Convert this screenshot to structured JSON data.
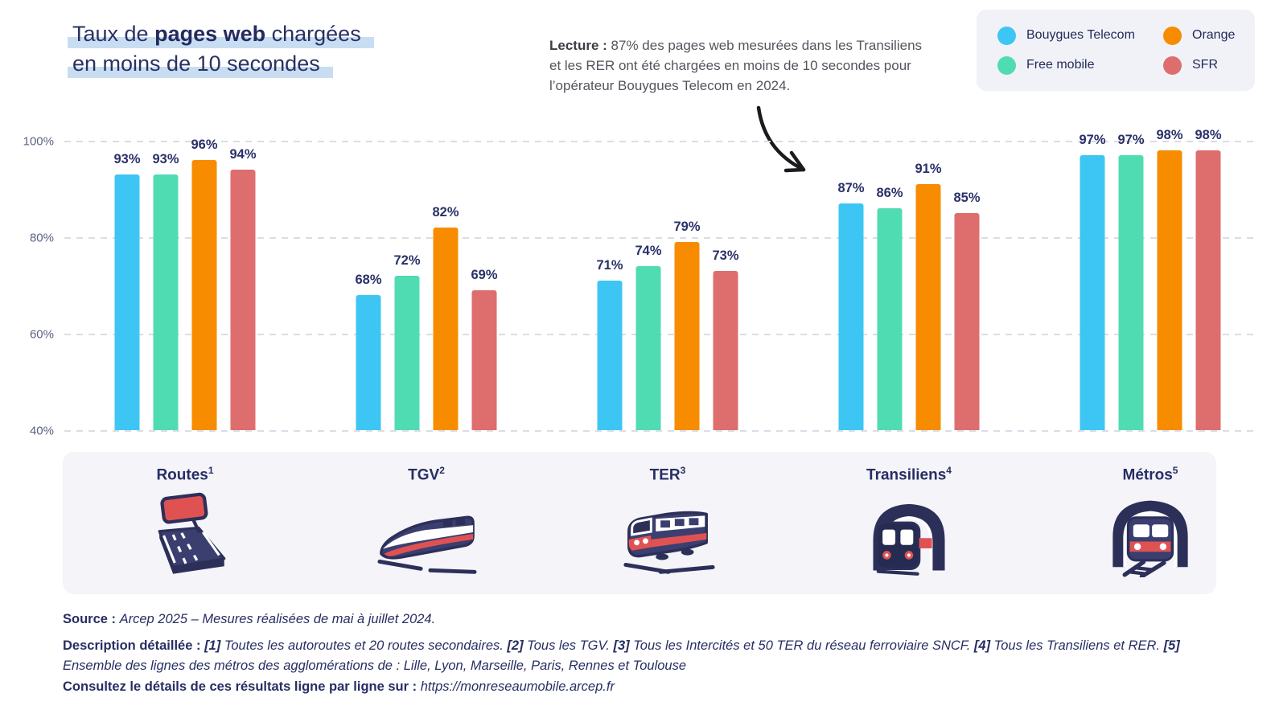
{
  "title": {
    "line1_pre": "Taux de ",
    "line1_bold": "pages web",
    "line1_post": " chargées",
    "line2": "en moins de 10 secondes",
    "highlight_color": "#C8DDF1"
  },
  "lecture": {
    "label": "Lecture :",
    "text": "87% des pages web mesurées dans les Transiliens et les RER ont été chargées en moins de 10 secondes pour l’opérateur Bouygues Telecom en 2024."
  },
  "legend": {
    "display_order": [
      "Bouygues Telecom",
      "Orange",
      "Free mobile",
      "SFR"
    ]
  },
  "chart_data": {
    "type": "bar",
    "title": "Taux de pages web chargées en moins de 10 secondes",
    "categories": [
      "Routes",
      "TGV",
      "TER",
      "Transiliens",
      "Métros"
    ],
    "category_sups": [
      "1",
      "2",
      "3",
      "4",
      "5"
    ],
    "category_icons": [
      "road-icon",
      "tgv-train-icon",
      "ter-train-icon",
      "transilien-train-tunnel-icon",
      "metro-train-tunnel-icon"
    ],
    "series": [
      {
        "name": "Bouygues Telecom",
        "color": "#3DC6F3",
        "values": [
          93,
          68,
          71,
          87,
          97
        ]
      },
      {
        "name": "Free mobile",
        "color": "#50DCB2",
        "values": [
          93,
          72,
          74,
          86,
          97
        ]
      },
      {
        "name": "Orange",
        "color": "#F88C00",
        "values": [
          96,
          82,
          79,
          91,
          98
        ]
      },
      {
        "name": "SFR",
        "color": "#DE6E6E",
        "values": [
          94,
          69,
          73,
          85,
          98
        ]
      }
    ],
    "unit": "%",
    "ylim": [
      40,
      100
    ],
    "yticks": [
      100,
      80,
      60,
      40
    ],
    "grid": "horizontal-dashed",
    "legend_position": "top-right",
    "value_labels": true
  },
  "footer": {
    "source_label": "Source :",
    "source_text": "Arcep 2025 – Mesures réalisées de mai à juillet 2024.",
    "description_label": "Description détaillée :",
    "description_segments": [
      {
        "ref": "[1]",
        "text": "Toutes les autoroutes et 20 routes secondaires."
      },
      {
        "ref": "[2]",
        "text": "Tous les TGV."
      },
      {
        "ref": "[3]",
        "text": "Tous les Intercités et 50 TER du réseau ferroviaire SNCF."
      },
      {
        "ref": "[4]",
        "text": "Tous les Transiliens et RER."
      },
      {
        "ref": "[5]",
        "text": "Ensemble des lignes des métros des agglomérations de : Lille, Lyon, Marseille, Paris, Rennes et Toulouse"
      }
    ],
    "consult_label": "Consultez le détails de ces résultats ligne par ligne sur :",
    "consult_text": "https://monreseaumobile.arcep.fr"
  }
}
